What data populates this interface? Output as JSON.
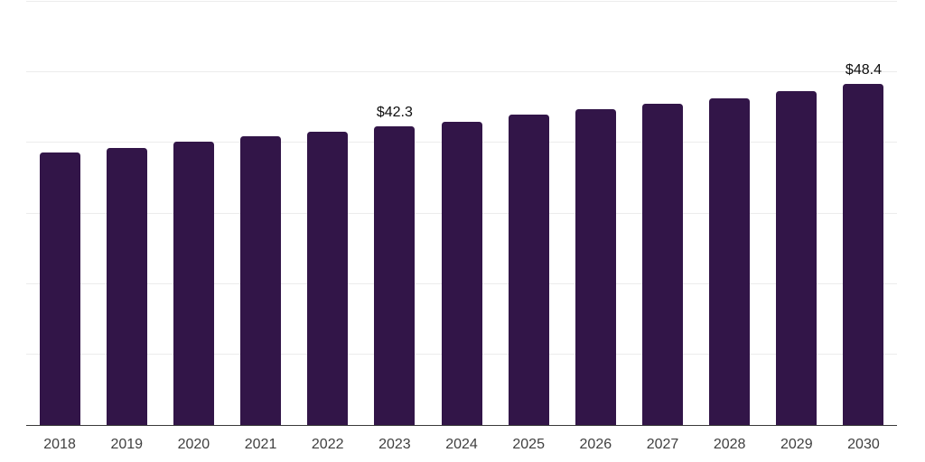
{
  "chart_data": {
    "type": "bar",
    "title": "",
    "xlabel": "",
    "ylabel": "",
    "categories": [
      "2018",
      "2019",
      "2020",
      "2021",
      "2022",
      "2023",
      "2024",
      "2025",
      "2026",
      "2027",
      "2028",
      "2029",
      "2030"
    ],
    "values": [
      38.6,
      39.3,
      40.2,
      40.9,
      41.6,
      42.3,
      43.0,
      44.0,
      44.8,
      45.6,
      46.3,
      47.3,
      48.4
    ],
    "data_labels": [
      "",
      "",
      "",
      "",
      "",
      "$42.3",
      "",
      "",
      "",
      "",
      "",
      "",
      "$48.4"
    ],
    "ylim": [
      0,
      60
    ],
    "gridline_step": 10,
    "grid": true,
    "legend": false,
    "bar_color": "#321548",
    "grid_color": "#ececec",
    "axis_line_color": "#3a3a3a",
    "tick_label_color": "#404040",
    "data_label_color": "#0d0d0d"
  }
}
